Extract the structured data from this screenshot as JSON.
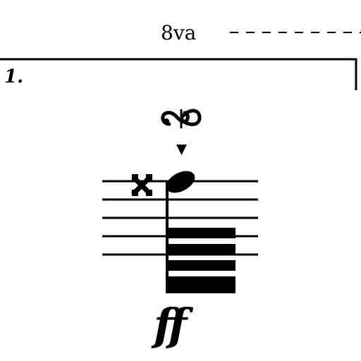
{
  "score": {
    "ottava": {
      "label": "8va"
    },
    "volta": {
      "label": "1."
    },
    "dynamic": {
      "label": "ff"
    },
    "ornament": {
      "name": "inverted-turn-icon"
    },
    "articulation": {
      "name": "staccatissimo-icon"
    },
    "accidental": {
      "name": "double-sharp-icon"
    },
    "tremolo_strokes": 5,
    "staff_lines": 5,
    "color": "#000000"
  }
}
